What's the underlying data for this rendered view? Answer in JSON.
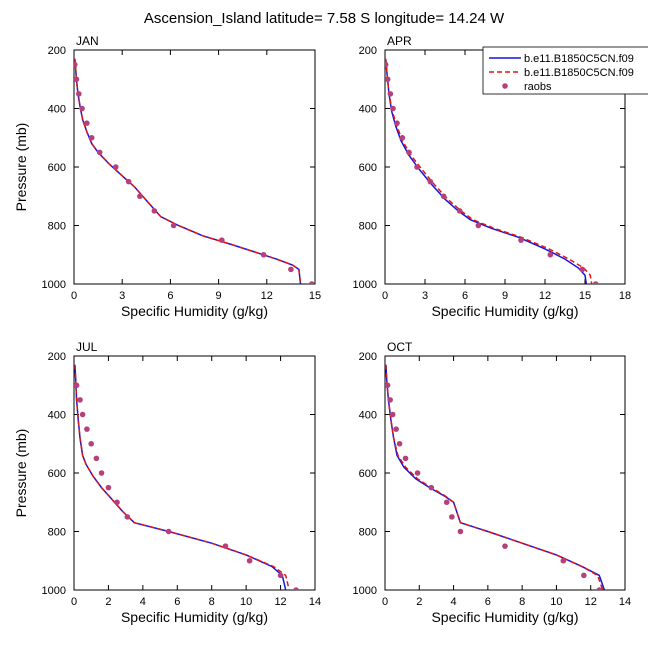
{
  "title": "Ascension_Island  latitude= 7.58 S longitude= 14.24 W",
  "legend": {
    "entries": [
      {
        "name": "b.e11.B1850C5CN.f09",
        "style": "solid",
        "color": "#1515e0"
      },
      {
        "name": "b.e11.B1850C5CN.f09",
        "style": "dashed",
        "color": "#e01515"
      },
      {
        "name": "raobs",
        "style": "marker",
        "color": "#b5407a"
      }
    ]
  },
  "colors": {
    "model1": "#1515e0",
    "model2": "#e01515",
    "obs": "#b5407a"
  },
  "chart_data": [
    {
      "type": "line",
      "panel": "JAN",
      "xlabel": "Specific Humidity (g/kg)",
      "ylabel": "Pressure (mb)",
      "xlim": [
        0,
        15
      ],
      "ylim": [
        1000,
        200
      ],
      "xticks": [
        0,
        3,
        6,
        9,
        12,
        15
      ],
      "yticks": [
        200,
        400,
        600,
        800,
        1000
      ],
      "series": [
        {
          "name": "b.e11.B1850C5CN.f09",
          "style": "solid",
          "x": [
            0.05,
            0.1,
            0.15,
            0.25,
            0.4,
            0.55,
            0.8,
            1.1,
            1.5,
            2.2,
            3.0,
            3.8,
            4.6,
            5.4,
            6.5,
            8.0,
            9.8,
            11.5,
            12.6,
            13.6,
            14.0,
            14.1
          ],
          "y": [
            230,
            260,
            300,
            350,
            400,
            440,
            480,
            520,
            550,
            590,
            630,
            670,
            720,
            770,
            800,
            835,
            865,
            895,
            915,
            935,
            950,
            1000
          ]
        },
        {
          "name": "b.e11.B1850C5CN.f09",
          "style": "dashed",
          "x": [
            0.05,
            0.1,
            0.15,
            0.25,
            0.4,
            0.55,
            0.8,
            1.1,
            1.5,
            2.2,
            3.0,
            3.8,
            4.6,
            5.4,
            6.5,
            8.0,
            9.8,
            11.5,
            12.6,
            13.6,
            14.0,
            14.1
          ],
          "y": [
            230,
            260,
            300,
            350,
            400,
            440,
            480,
            520,
            550,
            590,
            630,
            670,
            720,
            770,
            800,
            835,
            865,
            895,
            915,
            935,
            950,
            1000
          ]
        },
        {
          "name": "raobs",
          "style": "marker",
          "x": [
            0.05,
            0.15,
            0.3,
            0.5,
            0.8,
            1.1,
            1.6,
            2.6,
            3.4,
            4.1,
            5.0,
            6.2,
            9.2,
            11.8,
            13.5,
            14.8
          ],
          "y": [
            250,
            300,
            350,
            400,
            450,
            500,
            550,
            600,
            650,
            700,
            750,
            800,
            850,
            900,
            950,
            1000
          ]
        }
      ]
    },
    {
      "type": "line",
      "panel": "APR",
      "xlabel": "Specific Humidity (g/kg)",
      "ylabel": "",
      "xlim": [
        0,
        18
      ],
      "ylim": [
        1000,
        200
      ],
      "xticks": [
        0,
        3,
        6,
        9,
        12,
        15,
        18
      ],
      "yticks": [
        200,
        400,
        600,
        800,
        1000
      ],
      "series": [
        {
          "name": "b.e11.B1850C5CN.f09",
          "style": "solid",
          "x": [
            0.05,
            0.15,
            0.3,
            0.5,
            0.8,
            1.2,
            1.8,
            2.6,
            3.5,
            4.5,
            5.5,
            6.4,
            8.0,
            10.0,
            12.0,
            13.5,
            14.5,
            15.0,
            15.1
          ],
          "y": [
            230,
            280,
            350,
            410,
            460,
            510,
            560,
            610,
            660,
            710,
            750,
            780,
            810,
            840,
            880,
            915,
            945,
            970,
            1000
          ]
        },
        {
          "name": "b.e11.B1850C5CN.f09",
          "style": "dashed",
          "x": [
            0.05,
            0.15,
            0.3,
            0.55,
            0.9,
            1.3,
            1.95,
            2.8,
            3.7,
            4.7,
            5.7,
            6.6,
            8.2,
            10.2,
            12.3,
            13.8,
            14.9,
            15.4,
            15.5
          ],
          "y": [
            230,
            280,
            350,
            410,
            460,
            510,
            560,
            610,
            660,
            710,
            750,
            780,
            810,
            840,
            880,
            915,
            945,
            970,
            1000
          ]
        },
        {
          "name": "raobs",
          "style": "marker",
          "x": [
            0.05,
            0.2,
            0.4,
            0.6,
            0.9,
            1.3,
            1.8,
            2.4,
            3.4,
            4.4,
            5.6,
            7.0,
            10.2,
            12.4,
            14.8,
            15.8
          ],
          "y": [
            250,
            300,
            350,
            400,
            450,
            500,
            550,
            600,
            650,
            700,
            750,
            800,
            850,
            900,
            950,
            1000
          ]
        }
      ]
    },
    {
      "type": "line",
      "panel": "JUL",
      "xlabel": "Specific Humidity (g/kg)",
      "ylabel": "Pressure (mb)",
      "xlim": [
        0,
        14
      ],
      "ylim": [
        1000,
        200
      ],
      "xticks": [
        0,
        2,
        4,
        6,
        8,
        10,
        12,
        14
      ],
      "yticks": [
        200,
        400,
        600,
        800,
        1000
      ],
      "series": [
        {
          "name": "b.e11.B1850C5CN.f09",
          "style": "solid",
          "x": [
            0.05,
            0.1,
            0.15,
            0.25,
            0.35,
            0.5,
            0.7,
            1.1,
            1.6,
            2.2,
            2.8,
            3.5,
            5.5,
            8.0,
            10.0,
            11.5,
            12.1,
            12.3
          ],
          "y": [
            230,
            280,
            350,
            420,
            480,
            540,
            570,
            610,
            650,
            690,
            730,
            770,
            800,
            840,
            880,
            920,
            950,
            1000
          ]
        },
        {
          "name": "b.e11.B1850C5CN.f09",
          "style": "dashed",
          "x": [
            0.05,
            0.1,
            0.15,
            0.25,
            0.35,
            0.5,
            0.7,
            1.1,
            1.6,
            2.2,
            2.8,
            3.5,
            5.5,
            8.0,
            10.0,
            11.6,
            12.3,
            12.5
          ],
          "y": [
            230,
            280,
            350,
            420,
            480,
            540,
            570,
            610,
            650,
            690,
            730,
            770,
            800,
            840,
            880,
            920,
            950,
            1000
          ]
        },
        {
          "name": "raobs",
          "style": "marker",
          "x": [
            0.15,
            0.35,
            0.5,
            0.75,
            1.0,
            1.3,
            1.6,
            2.0,
            2.5,
            3.1,
            5.5,
            8.8,
            10.2,
            12.0,
            12.9
          ],
          "y": [
            300,
            350,
            400,
            450,
            500,
            550,
            600,
            650,
            700,
            750,
            800,
            850,
            900,
            950,
            1000
          ]
        }
      ]
    },
    {
      "type": "line",
      "panel": "OCT",
      "xlabel": "Specific Humidity (g/kg)",
      "ylabel": "",
      "xlim": [
        0,
        14
      ],
      "ylim": [
        1000,
        200
      ],
      "xticks": [
        0,
        2,
        4,
        6,
        8,
        10,
        12,
        14
      ],
      "yticks": [
        200,
        400,
        600,
        800,
        1000
      ],
      "series": [
        {
          "name": "b.e11.B1850C5CN.f09",
          "style": "solid",
          "x": [
            0.05,
            0.1,
            0.2,
            0.35,
            0.5,
            0.7,
            1.1,
            1.8,
            2.6,
            3.5,
            4.0,
            4.4,
            6.0,
            8.0,
            10.0,
            11.5,
            12.5,
            12.8
          ],
          "y": [
            230,
            280,
            350,
            420,
            480,
            540,
            580,
            620,
            650,
            680,
            700,
            770,
            800,
            840,
            880,
            920,
            950,
            1000
          ]
        },
        {
          "name": "b.e11.B1850C5CN.f09",
          "style": "dashed",
          "x": [
            0.05,
            0.1,
            0.2,
            0.35,
            0.5,
            0.75,
            1.2,
            1.9,
            2.7,
            3.55,
            4.0,
            4.4,
            6.0,
            8.0,
            10.0,
            11.5,
            12.4,
            12.7
          ],
          "y": [
            230,
            280,
            350,
            420,
            480,
            540,
            580,
            620,
            650,
            680,
            700,
            770,
            800,
            840,
            880,
            920,
            950,
            1000
          ]
        },
        {
          "name": "raobs",
          "style": "marker",
          "x": [
            0.15,
            0.3,
            0.45,
            0.65,
            0.85,
            1.2,
            1.9,
            2.7,
            3.6,
            3.9,
            4.4,
            7.0,
            10.4,
            11.6,
            12.5
          ],
          "y": [
            300,
            350,
            400,
            450,
            500,
            550,
            600,
            650,
            700,
            750,
            800,
            850,
            900,
            950,
            1000
          ]
        }
      ]
    }
  ]
}
